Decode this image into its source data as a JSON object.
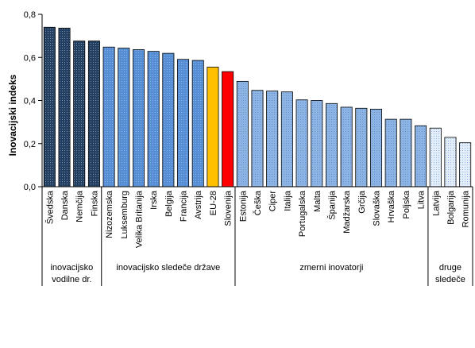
{
  "chart_data": {
    "type": "bar",
    "ylabel": "Inovacijski indeks",
    "xlabel": "",
    "ylim": [
      0,
      0.8
    ],
    "yticks": [
      "0,0",
      "0,2",
      "0,4",
      "0,6",
      "0,8"
    ],
    "categories": [
      "Švedska",
      "Danska",
      "Nemčija",
      "Finska",
      "Nizozemska",
      "Luksemburg",
      "Velika Britanija",
      "Irska",
      "Belgija",
      "Francija",
      "Avstrija",
      "EU-28",
      "Slovenija",
      "Estonija",
      "Češka",
      "Ciper",
      "Italija",
      "Portugalska",
      "Malta",
      "Španija",
      "Madžarska",
      "Grčija",
      "Slovaška",
      "Hrvaška",
      "Poljska",
      "Litva",
      "Latvija",
      "Bolgarija",
      "Romunija"
    ],
    "values": [
      0.74,
      0.736,
      0.676,
      0.676,
      0.648,
      0.643,
      0.636,
      0.628,
      0.619,
      0.591,
      0.586,
      0.555,
      0.534,
      0.489,
      0.447,
      0.444,
      0.44,
      0.403,
      0.4,
      0.386,
      0.369,
      0.364,
      0.36,
      0.313,
      0.313,
      0.283,
      0.272,
      0.229,
      0.204
    ],
    "bar_groups": [
      0,
      0,
      0,
      0,
      1,
      1,
      1,
      1,
      1,
      1,
      1,
      4,
      5,
      2,
      2,
      2,
      2,
      2,
      2,
      2,
      2,
      2,
      2,
      2,
      2,
      2,
      3,
      3,
      3
    ],
    "groups": [
      {
        "label_lines": [
          "inovacijsko",
          "vodilne dr."
        ],
        "start": 0,
        "end": 3
      },
      {
        "label_lines": [
          "inovacijsko sledeče države"
        ],
        "start": 4,
        "end": 12
      },
      {
        "label_lines": [
          "zmerni inovatorji"
        ],
        "start": 13,
        "end": 25
      },
      {
        "label_lines": [
          "druge",
          "sledeče"
        ],
        "start": 26,
        "end": 28
      }
    ],
    "colors": {
      "leaders": "#243f60",
      "followers": "#558ed5",
      "moderate": "#8eb4e3",
      "modest": "#c6d9f1",
      "eu": "#ffc000",
      "slovenia": "#ff0000"
    },
    "grid": false,
    "legend": "none"
  }
}
